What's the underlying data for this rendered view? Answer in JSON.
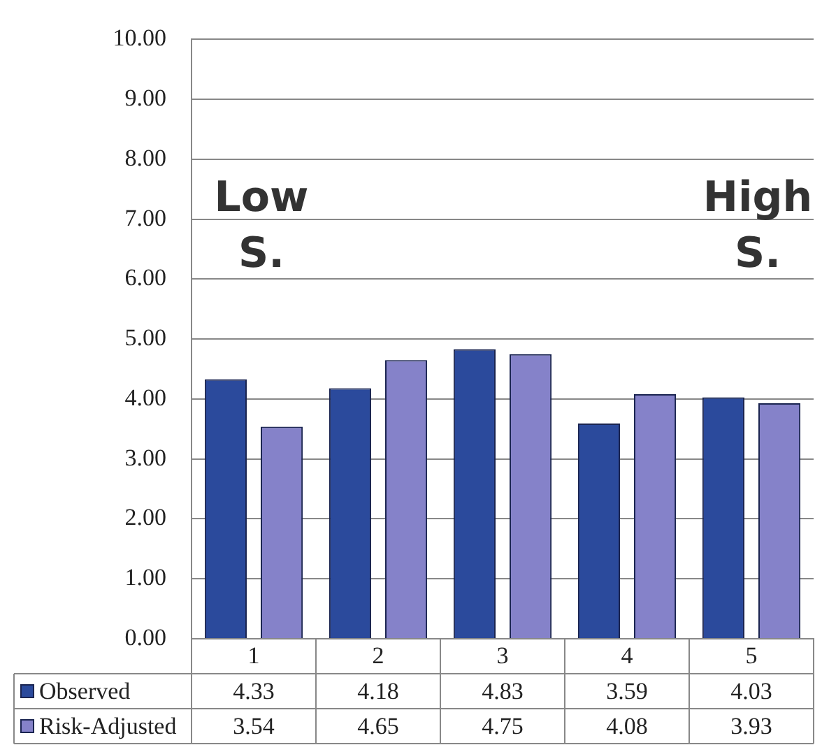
{
  "chart_data": {
    "type": "bar",
    "categories": [
      "1",
      "2",
      "3",
      "4",
      "5"
    ],
    "series": [
      {
        "name": "Observed",
        "color": "#2b4a9c",
        "values": [
          4.33,
          4.18,
          4.83,
          3.59,
          4.03
        ]
      },
      {
        "name": "Risk-Adjusted",
        "color": "#8582c9",
        "values": [
          3.54,
          4.65,
          4.75,
          4.08,
          3.93
        ]
      }
    ],
    "ylim": [
      0,
      10
    ],
    "yticks": [
      {
        "value": 0,
        "label": "0.00"
      },
      {
        "value": 1,
        "label": "1.00"
      },
      {
        "value": 2,
        "label": "2.00"
      },
      {
        "value": 3,
        "label": "3.00"
      },
      {
        "value": 4,
        "label": "4.00"
      },
      {
        "value": 5,
        "label": "5.00"
      },
      {
        "value": 6,
        "label": "6.00"
      },
      {
        "value": 7,
        "label": "7.00"
      },
      {
        "value": 8,
        "label": "8.00"
      },
      {
        "value": 9,
        "label": "9.00"
      },
      {
        "value": 10,
        "label": "10.00"
      }
    ],
    "grid": "y",
    "data_labels": true,
    "legend": "bottom left",
    "annotations": [
      "Low S.",
      "High S."
    ]
  }
}
